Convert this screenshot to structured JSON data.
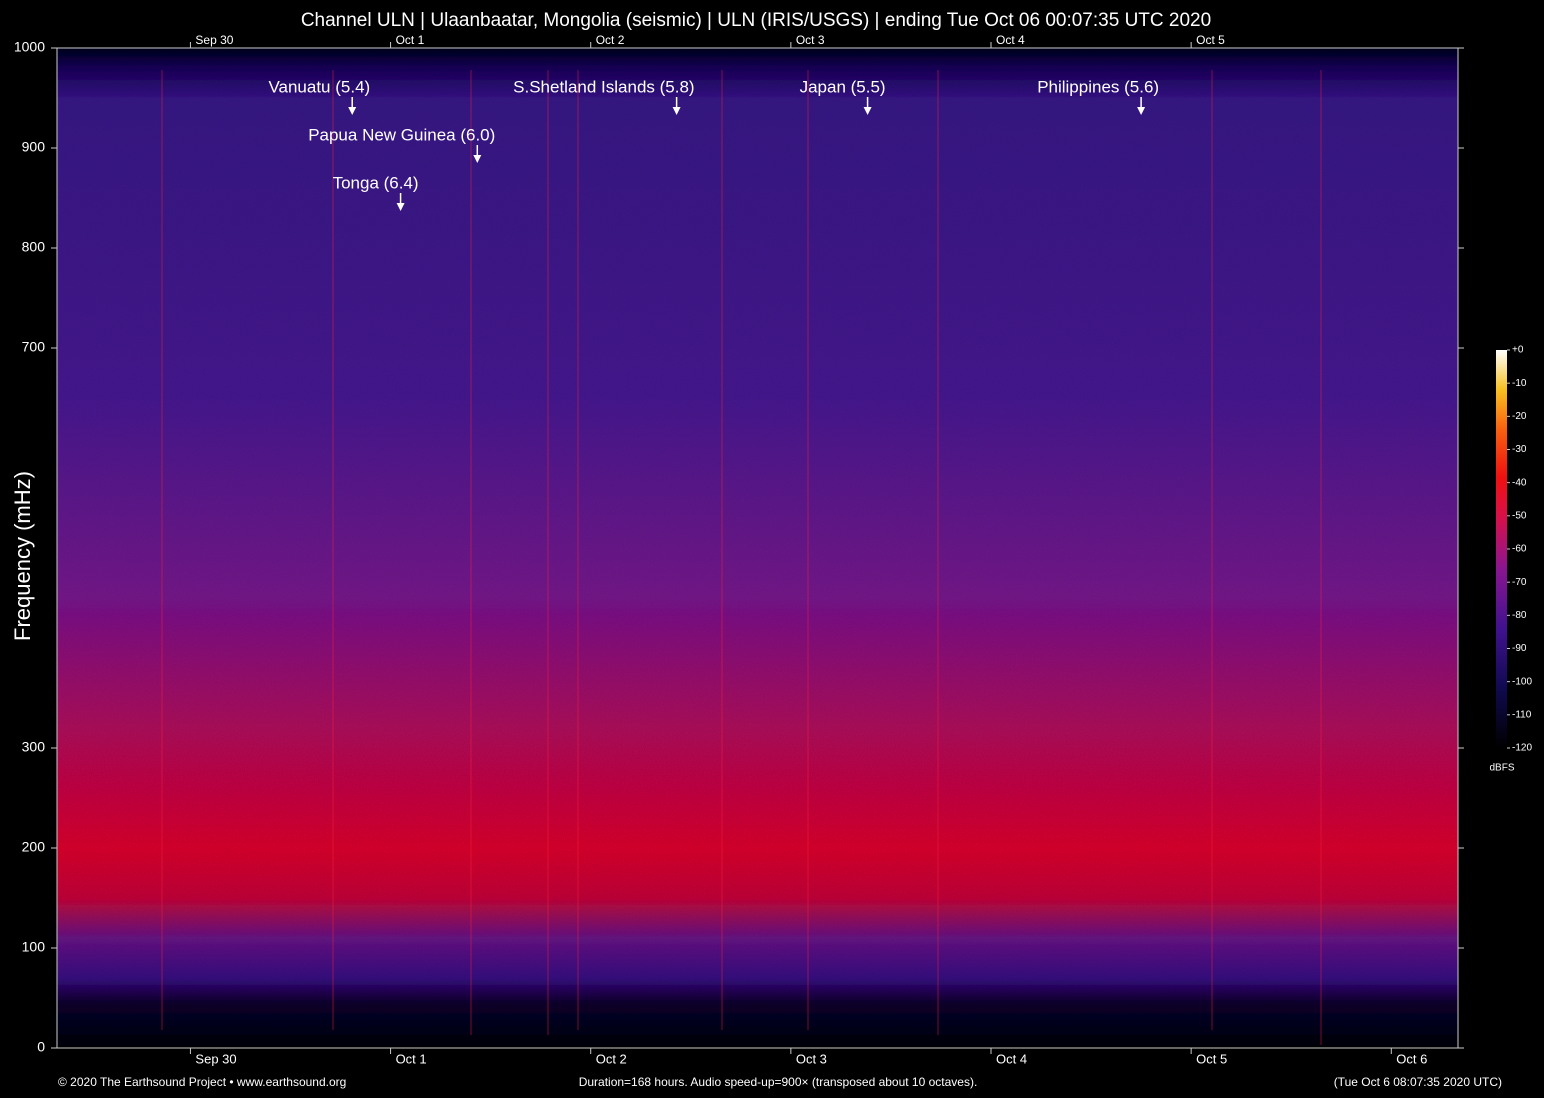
{
  "chart_data": {
    "type": "spectrogram",
    "title": "Channel ULN | Ulaanbaatar, Mongolia (seismic) | ULN (IRIS/USGS) | ending Tue Oct 06 00:07:35 UTC 2020",
    "ylabel": "Frequency (mHz)",
    "ylim": [
      0,
      1000
    ],
    "yticks": [
      0,
      100,
      200,
      300,
      700,
      800,
      900,
      1000
    ],
    "xlim": [
      0,
      168
    ],
    "xticks": [
      {
        "value": 16,
        "label": "Sep 30"
      },
      {
        "value": 40,
        "label": "Oct 1"
      },
      {
        "value": 64,
        "label": "Oct 2"
      },
      {
        "value": 88,
        "label": "Oct 3"
      },
      {
        "value": 112,
        "label": "Oct 4"
      },
      {
        "value": 136,
        "label": "Oct 5"
      },
      {
        "value": 160,
        "label": "Oct 6"
      }
    ],
    "x2ticks": [
      {
        "value": 16,
        "label": "Sep 30"
      },
      {
        "value": 40,
        "label": "Oct 1"
      },
      {
        "value": 64,
        "label": "Oct 2"
      },
      {
        "value": 88,
        "label": "Oct 3"
      },
      {
        "value": 112,
        "label": "Oct 4"
      },
      {
        "value": 136,
        "label": "Oct 5"
      }
    ],
    "annotations": [
      {
        "text": "Vanuatu (5.4)",
        "x": 35.4,
        "y": 933
      },
      {
        "text": "Papua New Guinea (6.0)",
        "x": 50.4,
        "y": 885
      },
      {
        "text": "Tonga (6.4)",
        "x": 41.2,
        "y": 837
      },
      {
        "text": "S.Shetland Islands (5.8)",
        "x": 74.3,
        "y": 933
      },
      {
        "text": "Japan (5.5)",
        "x": 97.2,
        "y": 933
      },
      {
        "text": "Philippines (5.6)",
        "x": 130,
        "y": 933
      }
    ],
    "colorbar": {
      "label": "dBFS",
      "lim": [
        -120,
        0
      ],
      "ticks": [
        {
          "value": 0,
          "label": "+0"
        },
        -10,
        -20,
        -30,
        -40,
        -50,
        -60,
        -70,
        -80,
        -90,
        -100,
        -110,
        -120
      ]
    },
    "footer": {
      "left": "© 2020 The Earthsound Project • www.earthsound.org",
      "center": "Duration=168 hours. Audio speed-up=900× (transposed about 10 octaves).",
      "right": "(Tue Oct  6 08:07:35 2020 UTC)"
    }
  }
}
